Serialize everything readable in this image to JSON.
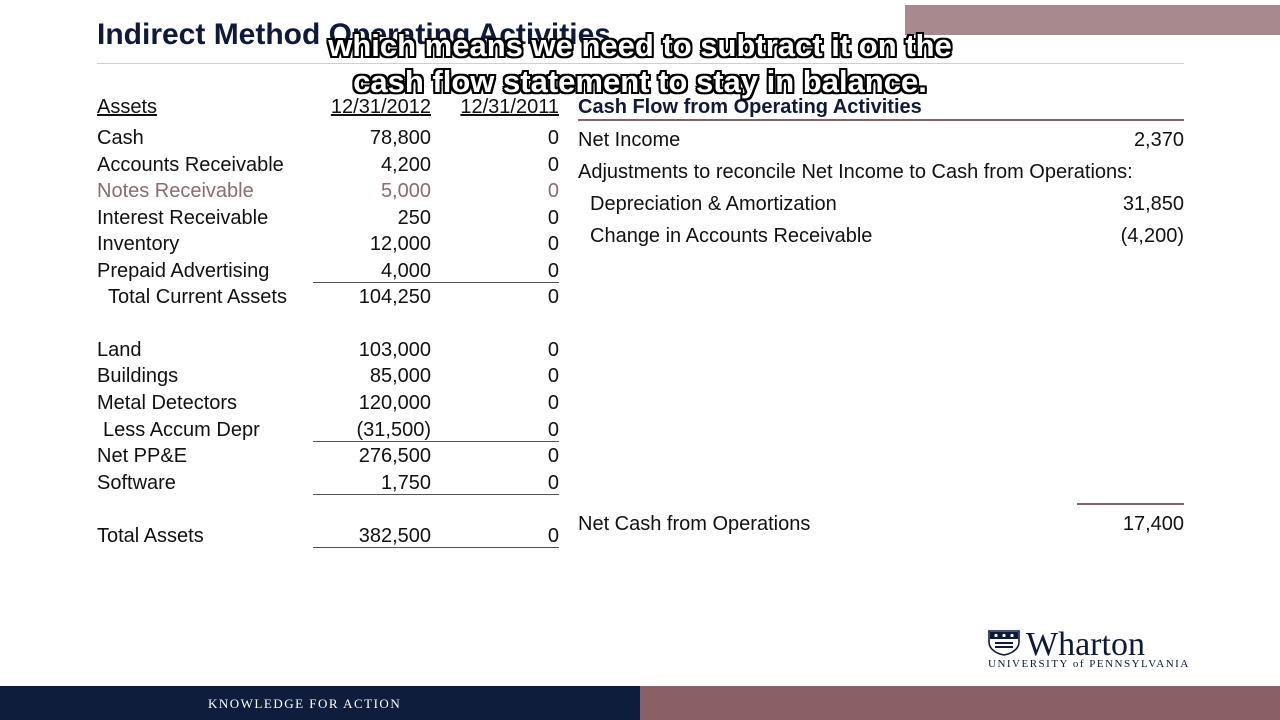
{
  "slide": {
    "title": "Indirect Method Operating Activities",
    "caption_line1": "which means we need to subtract it on the",
    "caption_line2": "cash flow statement to stay in balance."
  },
  "balance_sheet": {
    "header_label": "Assets",
    "col1": "12/31/2012",
    "col2": "12/31/2011",
    "rows": [
      {
        "label": "Cash",
        "v2012": "78,800",
        "v2011": "0"
      },
      {
        "label": "Accounts Receivable",
        "v2012": "4,200",
        "v2011": "0"
      },
      {
        "label": "Notes Receivable",
        "v2012": "5,000",
        "v2011": "0"
      },
      {
        "label": "Interest Receivable",
        "v2012": "250",
        "v2011": "0"
      },
      {
        "label": "Inventory",
        "v2012": "12,000",
        "v2011": "0"
      },
      {
        "label": "Prepaid Advertising",
        "v2012": "4,000",
        "v2011": "0"
      },
      {
        "label": "Total Current Assets",
        "v2012": "104,250",
        "v2011": "0"
      },
      {
        "label": "Land",
        "v2012": "103,000",
        "v2011": "0"
      },
      {
        "label": "Buildings",
        "v2012": "85,000",
        "v2011": "0"
      },
      {
        "label": "Metal Detectors",
        "v2012": "120,000",
        "v2011": "0"
      },
      {
        "label": "Less Accum Depr",
        "v2012": "(31,500)",
        "v2011": "0"
      },
      {
        "label": "Net PP&E",
        "v2012": "276,500",
        "v2011": "0"
      },
      {
        "label": "Software",
        "v2012": "1,750",
        "v2011": "0"
      },
      {
        "label": "Total Assets",
        "v2012": "382,500",
        "v2011": "0"
      }
    ]
  },
  "cash_flow": {
    "header": "Cash Flow from Operating Activities",
    "net_income_label": "Net Income",
    "net_income_value": "2,370",
    "adjustments_label": "Adjustments to reconcile Net Income to Cash from Operations:",
    "items": [
      {
        "label": "Depreciation & Amortization",
        "value": "31,850"
      },
      {
        "label": "Change in Accounts Receivable",
        "value": "(4,200)"
      }
    ],
    "net_cash_label": "Net Cash from Operations",
    "net_cash_value": "17,400"
  },
  "logo": {
    "name": "Wharton",
    "subtitle": "UNIVERSITY of PENNSYLVANIA",
    "icon": "penn-shield-icon"
  },
  "footer": {
    "tagline": "KNOWLEDGE FOR ACTION"
  },
  "colors": {
    "navy": "#0f1d3d",
    "maroon": "#8a5f65",
    "highlight_text": "#8f6a6a"
  }
}
